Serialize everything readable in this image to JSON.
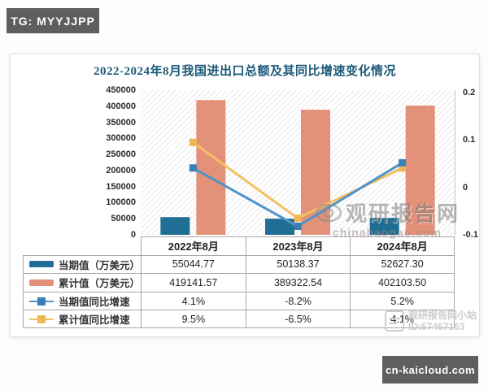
{
  "badges": {
    "tg": "TG: MYYJJPP",
    "site": "cn-kaicloud.com"
  },
  "watermarks": {
    "chart": {
      "name": "观研报告网",
      "domain": "chinabaogao.com"
    },
    "corner": {
      "name": "观研报告网小站",
      "id": "ID:57467163"
    }
  },
  "chart_data": {
    "type": "bar+line",
    "title": "2022-2024年8月我国进出口总额及其同比增速变化情况",
    "categories": [
      "2022年8月",
      "2023年8月",
      "2024年8月"
    ],
    "bar_series": [
      {
        "name": "当期值（万美元）",
        "color": "#1f6e94",
        "values": [
          55044.77,
          50138.37,
          52627.3
        ]
      },
      {
        "name": "累计值（万美元）",
        "color": "#e39179",
        "values": [
          419141.57,
          389322.54,
          402103.5
        ]
      }
    ],
    "line_series": [
      {
        "name": "当期值同比增速",
        "color": "#4f93ca",
        "marker_color": "#3b7fb8",
        "values": [
          0.041,
          -0.082,
          0.052
        ],
        "labels": [
          "4.1%",
          "-8.2%",
          "5.2%"
        ]
      },
      {
        "name": "累计值同比增速",
        "color": "#f3c063",
        "marker_color": "#efb757",
        "values": [
          0.095,
          -0.065,
          0.041
        ],
        "labels": [
          "9.5%",
          "-6.5%",
          "4.1%"
        ]
      }
    ],
    "left_axis": {
      "min": 0,
      "max": 450000,
      "step": 50000,
      "ticks": [
        "450000",
        "400000",
        "350000",
        "300000",
        "250000",
        "200000",
        "150000",
        "100000",
        "50000",
        "0"
      ]
    },
    "right_axis": {
      "min": -0.1,
      "max": 0.2,
      "step": 0.1,
      "ticks": [
        "0.2",
        "0.1",
        "0",
        "-0.1"
      ]
    },
    "grid": false,
    "legend_position": "table-left",
    "plot_background": "diagonal-hatch"
  },
  "table": {
    "headers": [
      "2022年8月",
      "2023年8月",
      "2024年8月"
    ],
    "rows": [
      {
        "label": "当期值（万美元）",
        "key": "bar",
        "series": 0,
        "values": [
          "55044.77",
          "50138.37",
          "52627.30"
        ]
      },
      {
        "label": "累计值（万美元）",
        "key": "bar",
        "series": 1,
        "values": [
          "419141.57",
          "389322.54",
          "402103.50"
        ]
      },
      {
        "label": "当期值同比增速",
        "key": "line",
        "series": 0,
        "values": [
          "4.1%",
          "-8.2%",
          "5.2%"
        ]
      },
      {
        "label": "累计值同比增速",
        "key": "line",
        "series": 1,
        "values": [
          "9.5%",
          "-6.5%",
          "4.1%"
        ]
      }
    ]
  },
  "colors": {
    "title": "#1c5a7a",
    "bar_current": "#1f6e94",
    "bar_cumulative": "#e39179",
    "line_current": "#4f93ca",
    "line_cumulative": "#f3c063",
    "badge_bg": "#5e5e5e",
    "table_border": "#a8a8a8"
  }
}
